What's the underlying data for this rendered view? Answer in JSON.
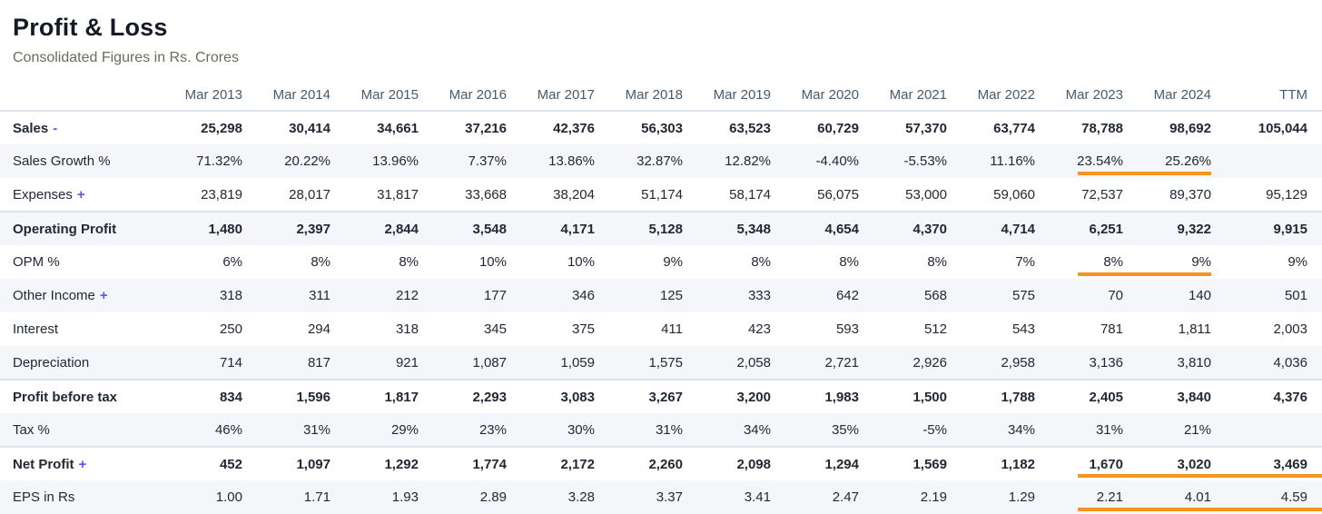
{
  "header": {
    "title": "Profit & Loss",
    "subtitle": "Consolidated Figures in Rs. Crores"
  },
  "colors": {
    "highlight_orange": "#f7941d",
    "toggle_violet": "#6254e3",
    "stripe": "#f5f6fa",
    "separator": "#d9e3f0"
  },
  "table": {
    "columns": [
      "Mar 2013",
      "Mar 2014",
      "Mar 2015",
      "Mar 2016",
      "Mar 2017",
      "Mar 2018",
      "Mar 2019",
      "Mar 2020",
      "Mar 2021",
      "Mar 2022",
      "Mar 2023",
      "Mar 2024",
      "TTM"
    ],
    "rows": [
      {
        "label": "Sales",
        "toggle": "-",
        "bold": true,
        "values": [
          "25,298",
          "30,414",
          "34,661",
          "37,216",
          "42,376",
          "56,303",
          "63,523",
          "60,729",
          "57,370",
          "63,774",
          "78,788",
          "98,692",
          "105,044"
        ],
        "underline": []
      },
      {
        "label": "Sales Growth %",
        "toggle": "",
        "bold": false,
        "values": [
          "71.32%",
          "20.22%",
          "13.96%",
          "7.37%",
          "13.86%",
          "32.87%",
          "12.82%",
          "-4.40%",
          "-5.53%",
          "11.16%",
          "23.54%",
          "25.26%",
          ""
        ],
        "underline": [
          10,
          11
        ]
      },
      {
        "label": "Expenses",
        "toggle": "+",
        "bold": false,
        "values": [
          "23,819",
          "28,017",
          "31,817",
          "33,668",
          "38,204",
          "51,174",
          "58,174",
          "56,075",
          "53,000",
          "59,060",
          "72,537",
          "89,370",
          "95,129"
        ],
        "underline": []
      },
      {
        "label": "Operating Profit",
        "toggle": "",
        "bold": true,
        "values": [
          "1,480",
          "2,397",
          "2,844",
          "3,548",
          "4,171",
          "5,128",
          "5,348",
          "4,654",
          "4,370",
          "4,714",
          "6,251",
          "9,322",
          "9,915"
        ],
        "underline": []
      },
      {
        "label": "OPM %",
        "toggle": "",
        "bold": false,
        "values": [
          "6%",
          "8%",
          "8%",
          "10%",
          "10%",
          "9%",
          "8%",
          "8%",
          "8%",
          "7%",
          "8%",
          "9%",
          "9%"
        ],
        "underline": [
          10,
          11
        ]
      },
      {
        "label": "Other Income",
        "toggle": "+",
        "bold": false,
        "values": [
          "318",
          "311",
          "212",
          "177",
          "346",
          "125",
          "333",
          "642",
          "568",
          "575",
          "70",
          "140",
          "501"
        ],
        "underline": []
      },
      {
        "label": "Interest",
        "toggle": "",
        "bold": false,
        "values": [
          "250",
          "294",
          "318",
          "345",
          "375",
          "411",
          "423",
          "593",
          "512",
          "543",
          "781",
          "1,811",
          "2,003"
        ],
        "underline": []
      },
      {
        "label": "Depreciation",
        "toggle": "",
        "bold": false,
        "values": [
          "714",
          "817",
          "921",
          "1,087",
          "1,059",
          "1,575",
          "2,058",
          "2,721",
          "2,926",
          "2,958",
          "3,136",
          "3,810",
          "4,036"
        ],
        "underline": []
      },
      {
        "label": "Profit before tax",
        "toggle": "",
        "bold": true,
        "values": [
          "834",
          "1,596",
          "1,817",
          "2,293",
          "3,083",
          "3,267",
          "3,200",
          "1,983",
          "1,500",
          "1,788",
          "2,405",
          "3,840",
          "4,376"
        ],
        "underline": []
      },
      {
        "label": "Tax %",
        "toggle": "",
        "bold": false,
        "values": [
          "46%",
          "31%",
          "29%",
          "23%",
          "30%",
          "31%",
          "34%",
          "35%",
          "-5%",
          "34%",
          "31%",
          "21%",
          ""
        ],
        "underline": []
      },
      {
        "label": "Net Profit",
        "toggle": "+",
        "bold": true,
        "values": [
          "452",
          "1,097",
          "1,292",
          "1,774",
          "2,172",
          "2,260",
          "2,098",
          "1,294",
          "1,569",
          "1,182",
          "1,670",
          "3,020",
          "3,469"
        ],
        "underline": [
          10,
          11,
          12
        ]
      },
      {
        "label": "EPS in Rs",
        "toggle": "",
        "bold": false,
        "values": [
          "1.00",
          "1.71",
          "1.93",
          "2.89",
          "3.28",
          "3.37",
          "3.41",
          "2.47",
          "2.19",
          "1.29",
          "2.21",
          "4.01",
          "4.59"
        ],
        "underline": [
          10,
          11,
          12
        ]
      }
    ]
  }
}
